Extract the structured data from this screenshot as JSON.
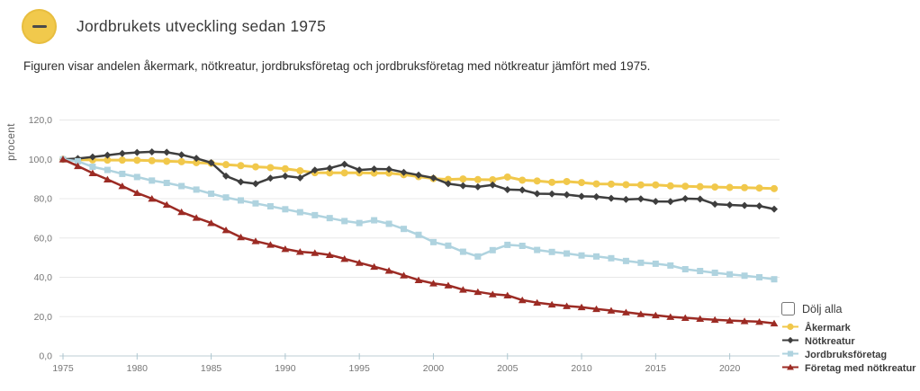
{
  "header": {
    "title": "Jordbrukets utveckling sedan 1975",
    "collapse_icon": "minus-icon",
    "collapse_button_color": "#F1C94C"
  },
  "description": "Figuren visar andelen åkermark, nötkreatur, jordbruksföretag och jordbruksföretag med nötkreatur jämfört med 1975.",
  "legend": {
    "hide_all_label": "Dölj alla",
    "hide_all_checked": false,
    "position": "right-bottom"
  },
  "chart_data": {
    "type": "line",
    "title": "",
    "xlabel": "",
    "ylabel": "procent",
    "ylim": [
      0,
      120
    ],
    "ytick_step": 20,
    "ytick_decimal": "comma",
    "xticks": [
      1975,
      1980,
      1985,
      1990,
      1995,
      2000,
      2005,
      2010,
      2015,
      2020
    ],
    "grid": true,
    "x": [
      1975,
      1976,
      1977,
      1978,
      1979,
      1980,
      1981,
      1982,
      1983,
      1984,
      1985,
      1986,
      1987,
      1988,
      1989,
      1990,
      1991,
      1992,
      1993,
      1994,
      1995,
      1996,
      1997,
      1998,
      1999,
      2000,
      2001,
      2002,
      2003,
      2004,
      2005,
      2006,
      2007,
      2008,
      2009,
      2010,
      2011,
      2012,
      2013,
      2014,
      2015,
      2016,
      2017,
      2018,
      2019,
      2020,
      2021,
      2022,
      2023
    ],
    "series": [
      {
        "name": "Åkermark",
        "color": "#F1C84B",
        "marker": "circle",
        "line_width": 3,
        "values": [
          100,
          99.8,
          99.7,
          99.6,
          99.6,
          99.5,
          99.3,
          99,
          98.8,
          98.3,
          98,
          97.3,
          96.8,
          96.2,
          95.8,
          95.2,
          94.2,
          93.2,
          93.1,
          93.1,
          93.1,
          93,
          93,
          92.2,
          91.2,
          90.2,
          89.8,
          90,
          89.7,
          89.6,
          91,
          89.4,
          89,
          88.3,
          88.7,
          88.2,
          87.5,
          87.4,
          87.1,
          87,
          87,
          86.5,
          86.3,
          86.1,
          85.9,
          85.7,
          85.6,
          85.4,
          85.1
        ]
      },
      {
        "name": "Nötkreatur",
        "color": "#3E3E3E",
        "marker": "diamond",
        "line_width": 2.5,
        "values": [
          100,
          100.4,
          101.2,
          102.1,
          103,
          103.5,
          103.8,
          103.6,
          102.3,
          100.5,
          98.3,
          91.5,
          88.5,
          87.6,
          90.4,
          91.5,
          90.6,
          94.5,
          95.5,
          97.5,
          94.6,
          95.1,
          95,
          93.4,
          92,
          90.5,
          87.6,
          86.6,
          86,
          87,
          84.6,
          84.4,
          82.5,
          82.4,
          82,
          81.2,
          81,
          80.2,
          79.6,
          79.9,
          78.6,
          78.5,
          80,
          79.8,
          77.2,
          76.8,
          76.5,
          76.3,
          74.7
        ]
      },
      {
        "name": "Jordbruksföretag",
        "color": "#AFD3DF",
        "marker": "square",
        "line_width": 2.5,
        "values": [
          100,
          99,
          96.2,
          94.6,
          92.6,
          91,
          89.2,
          88,
          86.4,
          84.6,
          82.5,
          80.6,
          79.1,
          77.6,
          76.1,
          74.6,
          73.1,
          71.6,
          70.1,
          68.6,
          67.6,
          69,
          67.2,
          64.6,
          61.6,
          57.9,
          56.1,
          53,
          50.6,
          53.8,
          56.5,
          56,
          53.9,
          52.9,
          52.1,
          51.1,
          50.6,
          49.7,
          48.3,
          47.4,
          46.9,
          46,
          44.1,
          43.2,
          42.3,
          41.5,
          40.8,
          40,
          39
        ]
      },
      {
        "name": "Företag med nötkreatur",
        "color": "#9C2B24",
        "marker": "triangle",
        "line_width": 2.5,
        "values": [
          100,
          96.6,
          93,
          89.8,
          86.4,
          82.9,
          80,
          76.9,
          73.2,
          70.3,
          67.6,
          64,
          60.4,
          58.4,
          56.6,
          54.4,
          53,
          52.4,
          51.4,
          49.4,
          47.4,
          45.4,
          43.4,
          41,
          38.6,
          36.9,
          35.9,
          33.7,
          32.6,
          31.4,
          30.8,
          28.4,
          27.1,
          26.2,
          25.4,
          24.8,
          23.9,
          23.1,
          22.2,
          21.3,
          20.7,
          19.9,
          19.4,
          18.9,
          18.4,
          18,
          17.7,
          17.4,
          16.6
        ]
      }
    ],
    "colors": {
      "gridline": "#e8e8e8",
      "axis_line": "#c9d7dc",
      "tick_mark": "#aec7d0",
      "tick_text": "#767676",
      "axis_label_text": "#5c5c5c"
    }
  }
}
